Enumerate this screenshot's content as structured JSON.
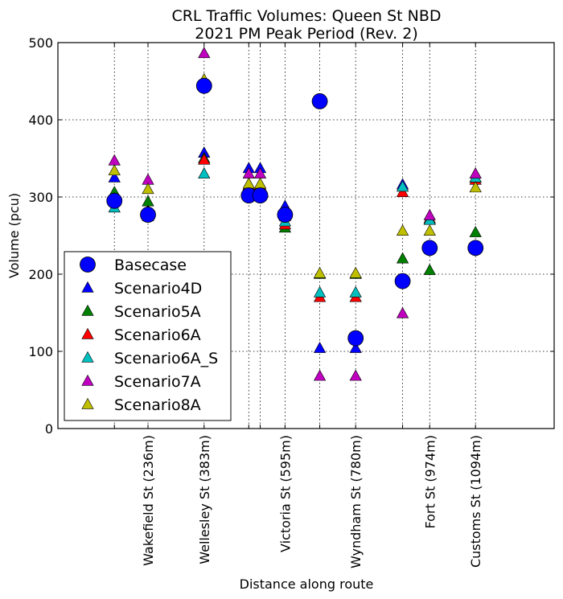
{
  "chart_data": {
    "type": "scatter",
    "title": "CRL Traffic Volumes: Queen St NBD",
    "subtitle": "2021 PM Peak Period (Rev. 2)",
    "xlabel": "Distance along route",
    "ylabel": "Volume (pcu)",
    "ylim": [
      0,
      500
    ],
    "yticks": [
      0,
      100,
      200,
      300,
      400,
      500
    ],
    "xlim": [
      0,
      1300
    ],
    "grid": true,
    "legend_position": "lower-left",
    "x_tick_labels": [
      {
        "x": 236,
        "label": "Wakefield St (236m)"
      },
      {
        "x": 383,
        "label": "Wellesley St (383m)"
      },
      {
        "x": 595,
        "label": "Victoria St (595m)"
      },
      {
        "x": 780,
        "label": "Wyndham St (780m)"
      },
      {
        "x": 974,
        "label": "Fort St (974m)"
      },
      {
        "x": 1094,
        "label": "Customs St (1094m)"
      }
    ],
    "x_grid_unlabeled": [
      148,
      500,
      530,
      686,
      903
    ],
    "series": [
      {
        "name": "Basecase",
        "marker": "circle",
        "color": "#0000ff",
        "points": [
          [
            148,
            295
          ],
          [
            236,
            277
          ],
          [
            383,
            444
          ],
          [
            500,
            302
          ],
          [
            530,
            302
          ],
          [
            595,
            277
          ],
          [
            686,
            424
          ],
          [
            780,
            117
          ],
          [
            903,
            191
          ],
          [
            974,
            234
          ],
          [
            1094,
            234
          ]
        ]
      },
      {
        "name": "Scenario4D",
        "marker": "triangle",
        "color": "#0000ff",
        "points": [
          [
            148,
            325
          ],
          [
            236,
            282
          ],
          [
            383,
            357
          ],
          [
            500,
            337
          ],
          [
            530,
            337
          ],
          [
            595,
            288
          ],
          [
            686,
            104
          ],
          [
            780,
            104
          ],
          [
            903,
            316
          ],
          [
            974,
            270
          ],
          [
            1094,
            325
          ]
        ]
      },
      {
        "name": "Scenario5A",
        "marker": "triangle",
        "color": "#008000",
        "points": [
          [
            148,
            306
          ],
          [
            236,
            294
          ],
          [
            383,
            350
          ],
          [
            500,
            310
          ],
          [
            530,
            310
          ],
          [
            595,
            260
          ],
          [
            686,
            200
          ],
          [
            780,
            200
          ],
          [
            903,
            220
          ],
          [
            974,
            205
          ],
          [
            1094,
            254
          ]
        ]
      },
      {
        "name": "Scenario6A",
        "marker": "triangle",
        "color": "#ff0000",
        "points": [
          [
            148,
            298
          ],
          [
            236,
            280
          ],
          [
            383,
            348
          ],
          [
            500,
            315
          ],
          [
            530,
            315
          ],
          [
            595,
            264
          ],
          [
            686,
            170
          ],
          [
            780,
            170
          ],
          [
            903,
            306
          ],
          [
            974,
            272
          ],
          [
            1094,
            322
          ]
        ]
      },
      {
        "name": "Scenario6A_S",
        "marker": "triangle",
        "color": "#00bfbf",
        "points": [
          [
            148,
            286
          ],
          [
            236,
            275
          ],
          [
            383,
            330
          ],
          [
            500,
            310
          ],
          [
            530,
            310
          ],
          [
            595,
            268
          ],
          [
            686,
            176
          ],
          [
            780,
            176
          ],
          [
            903,
            313
          ],
          [
            974,
            270
          ],
          [
            1094,
            325
          ]
        ]
      },
      {
        "name": "Scenario7A",
        "marker": "triangle",
        "color": "#bf00bf",
        "points": [
          [
            148,
            347
          ],
          [
            236,
            322
          ],
          [
            383,
            486
          ],
          [
            500,
            330
          ],
          [
            530,
            330
          ],
          [
            595,
            278
          ],
          [
            686,
            68
          ],
          [
            780,
            68
          ],
          [
            903,
            149
          ],
          [
            974,
            276
          ],
          [
            1094,
            330
          ]
        ]
      },
      {
        "name": "Scenario8A",
        "marker": "triangle",
        "color": "#bfbf00",
        "points": [
          [
            148,
            334
          ],
          [
            236,
            310
          ],
          [
            383,
            452
          ],
          [
            500,
            317
          ],
          [
            530,
            317
          ],
          [
            595,
            275
          ],
          [
            686,
            201
          ],
          [
            780,
            201
          ],
          [
            903,
            256
          ],
          [
            974,
            256
          ],
          [
            1094,
            312
          ]
        ]
      }
    ]
  }
}
